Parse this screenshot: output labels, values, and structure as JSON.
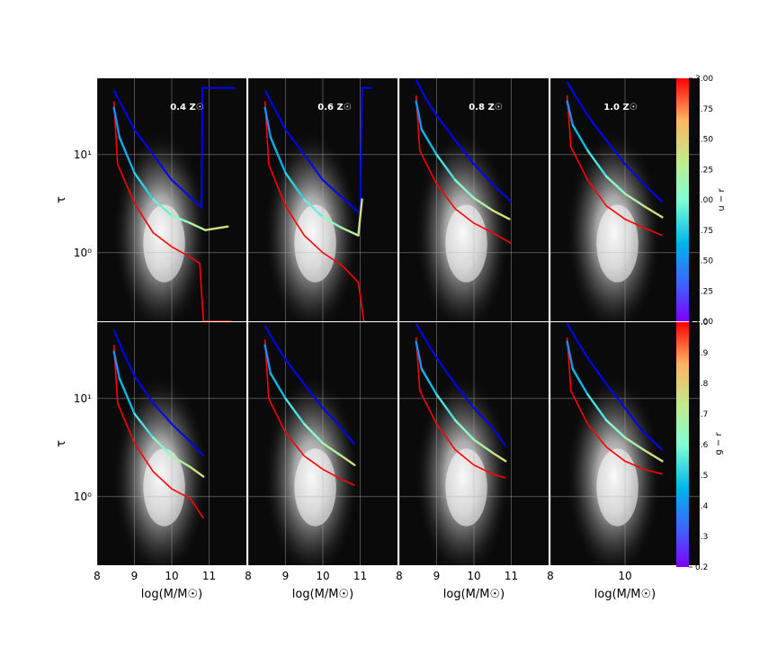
{
  "chart_data": {
    "type": "line",
    "description_free": true,
    "xlabel": "log(M/M☉)",
    "ylabel": "τ",
    "panel_labels": [
      "0.4 Z☉",
      "0.6 Z☉",
      "0.8 Z☉",
      "1.0 Z☉"
    ],
    "x_tick_labels": [
      "8",
      "9",
      "10",
      "11"
    ],
    "x_tick_labels_col4": [
      "8",
      "10"
    ],
    "y_tick_labels": [
      "10¹",
      "10⁰"
    ],
    "yscale": "log",
    "ylim": [
      0.2,
      60
    ],
    "xlim": [
      8,
      12
    ],
    "colorbars": [
      {
        "label": "u − r",
        "range": [
          1.0,
          3.0
        ],
        "ticks": [
          "3.00",
          "2.75",
          "2.50",
          "2.25",
          "2.00",
          "1.75",
          "1.50",
          "1.25",
          "1.00"
        ]
      },
      {
        "label": "g − r",
        "range": [
          0.2,
          1.0
        ],
        "ticks": [
          "1.0",
          "0.9",
          "0.8",
          "0.7",
          "0.6",
          "0.5",
          "0.4",
          "0.3",
          "0.2"
        ]
      }
    ],
    "panels": [
      {
        "row": 0,
        "col": 0,
        "upper": [
          [
            8.45,
            45
          ],
          [
            8.7,
            30
          ],
          [
            9.0,
            18
          ],
          [
            9.5,
            10
          ],
          [
            10.0,
            5.5
          ],
          [
            10.8,
            2.9
          ],
          [
            10.82,
            48
          ],
          [
            11.7,
            48
          ]
        ],
        "median": [
          [
            8.45,
            30
          ],
          [
            8.6,
            15
          ],
          [
            9.0,
            6.5
          ],
          [
            9.5,
            3.5
          ],
          [
            10.0,
            2.4
          ],
          [
            10.5,
            2.0
          ],
          [
            10.9,
            1.7
          ],
          [
            11.5,
            1.85
          ]
        ],
        "lower": [
          [
            8.45,
            35
          ],
          [
            8.55,
            8
          ],
          [
            9.0,
            3.2
          ],
          [
            9.5,
            1.6
          ],
          [
            10.0,
            1.15
          ],
          [
            10.5,
            0.9
          ],
          [
            10.75,
            0.78
          ],
          [
            10.85,
            0.2
          ],
          [
            11.6,
            0.2
          ]
        ]
      },
      {
        "row": 0,
        "col": 1,
        "upper": [
          [
            8.45,
            45
          ],
          [
            8.7,
            30
          ],
          [
            9.0,
            18
          ],
          [
            9.5,
            10
          ],
          [
            10.0,
            5.5
          ],
          [
            11.0,
            2.5
          ],
          [
            11.05,
            48
          ],
          [
            11.3,
            48
          ]
        ],
        "median": [
          [
            8.45,
            30
          ],
          [
            8.6,
            15
          ],
          [
            9.0,
            6.5
          ],
          [
            9.5,
            3.5
          ],
          [
            10.0,
            2.3
          ],
          [
            10.5,
            1.8
          ],
          [
            10.95,
            1.5
          ],
          [
            11.05,
            3.5
          ]
        ],
        "lower": [
          [
            8.45,
            35
          ],
          [
            8.55,
            8
          ],
          [
            9.0,
            3.0
          ],
          [
            9.5,
            1.5
          ],
          [
            10.0,
            1.0
          ],
          [
            10.5,
            0.75
          ],
          [
            10.95,
            0.5
          ],
          [
            11.1,
            0.2
          ]
        ]
      },
      {
        "row": 0,
        "col": 2,
        "upper": [
          [
            8.45,
            58
          ],
          [
            8.7,
            38
          ],
          [
            9.0,
            25
          ],
          [
            9.5,
            14
          ],
          [
            10.0,
            8.0
          ],
          [
            10.5,
            5.0
          ],
          [
            11.0,
            3.3
          ]
        ],
        "median": [
          [
            8.45,
            35
          ],
          [
            8.6,
            18
          ],
          [
            9.0,
            10
          ],
          [
            9.5,
            5.5
          ],
          [
            10.0,
            3.6
          ],
          [
            10.5,
            2.7
          ],
          [
            10.95,
            2.2
          ]
        ],
        "lower": [
          [
            8.45,
            40
          ],
          [
            8.55,
            11
          ],
          [
            9.0,
            5.0
          ],
          [
            9.5,
            2.8
          ],
          [
            10.0,
            2.0
          ],
          [
            10.5,
            1.6
          ],
          [
            11.0,
            1.25
          ]
        ]
      },
      {
        "row": 0,
        "col": 3,
        "upper": [
          [
            8.45,
            55
          ],
          [
            8.7,
            38
          ],
          [
            9.0,
            25
          ],
          [
            9.5,
            14
          ],
          [
            10.0,
            8.0
          ],
          [
            10.5,
            5.0
          ],
          [
            11.0,
            3.3
          ]
        ],
        "median": [
          [
            8.45,
            35
          ],
          [
            8.6,
            20
          ],
          [
            9.0,
            11
          ],
          [
            9.5,
            6.0
          ],
          [
            10.0,
            4.0
          ],
          [
            10.5,
            3.0
          ],
          [
            11.0,
            2.3
          ]
        ],
        "lower": [
          [
            8.45,
            40
          ],
          [
            8.55,
            12
          ],
          [
            9.0,
            5.5
          ],
          [
            9.5,
            3.0
          ],
          [
            10.0,
            2.2
          ],
          [
            10.5,
            1.8
          ],
          [
            11.0,
            1.5
          ]
        ]
      },
      {
        "row": 1,
        "col": 0,
        "upper": [
          [
            8.45,
            50
          ],
          [
            8.7,
            30
          ],
          [
            9.0,
            17
          ],
          [
            9.5,
            9.0
          ],
          [
            10.0,
            5.5
          ],
          [
            10.5,
            3.6
          ],
          [
            10.85,
            2.6
          ]
        ],
        "median": [
          [
            8.45,
            30
          ],
          [
            8.6,
            16
          ],
          [
            9.0,
            7.0
          ],
          [
            9.5,
            4.0
          ],
          [
            10.0,
            2.6
          ],
          [
            10.5,
            2.0
          ],
          [
            10.85,
            1.6
          ]
        ],
        "lower": [
          [
            8.45,
            35
          ],
          [
            8.55,
            9
          ],
          [
            9.0,
            3.5
          ],
          [
            9.5,
            1.8
          ],
          [
            10.0,
            1.2
          ],
          [
            10.5,
            0.95
          ],
          [
            10.85,
            0.6
          ]
        ]
      },
      {
        "row": 1,
        "col": 1,
        "upper": [
          [
            8.45,
            55
          ],
          [
            8.7,
            38
          ],
          [
            9.0,
            25
          ],
          [
            9.5,
            14
          ],
          [
            10.0,
            8.0
          ],
          [
            10.5,
            5.0
          ],
          [
            10.85,
            3.4
          ]
        ],
        "median": [
          [
            8.45,
            35
          ],
          [
            8.6,
            18
          ],
          [
            9.0,
            10
          ],
          [
            9.5,
            5.5
          ],
          [
            10.0,
            3.5
          ],
          [
            10.5,
            2.6
          ],
          [
            10.85,
            2.1
          ]
        ],
        "lower": [
          [
            8.45,
            40
          ],
          [
            8.55,
            10
          ],
          [
            9.0,
            4.5
          ],
          [
            9.5,
            2.6
          ],
          [
            10.0,
            1.9
          ],
          [
            10.5,
            1.5
          ],
          [
            10.85,
            1.3
          ]
        ]
      },
      {
        "row": 1,
        "col": 2,
        "upper": [
          [
            8.45,
            58
          ],
          [
            8.7,
            40
          ],
          [
            9.0,
            26
          ],
          [
            9.5,
            14
          ],
          [
            10.0,
            8.0
          ],
          [
            10.5,
            5.0
          ],
          [
            10.85,
            3.3
          ]
        ],
        "median": [
          [
            8.45,
            38
          ],
          [
            8.6,
            20
          ],
          [
            9.0,
            11
          ],
          [
            9.5,
            6.0
          ],
          [
            10.0,
            3.8
          ],
          [
            10.5,
            2.8
          ],
          [
            10.85,
            2.3
          ]
        ],
        "lower": [
          [
            8.45,
            42
          ],
          [
            8.55,
            12
          ],
          [
            9.0,
            5.5
          ],
          [
            9.5,
            3.0
          ],
          [
            10.0,
            2.1
          ],
          [
            10.5,
            1.7
          ],
          [
            10.85,
            1.55
          ]
        ]
      },
      {
        "row": 1,
        "col": 3,
        "upper": [
          [
            8.45,
            58
          ],
          [
            8.7,
            40
          ],
          [
            9.0,
            26
          ],
          [
            9.5,
            14
          ],
          [
            10.0,
            8.0
          ],
          [
            10.5,
            4.5
          ],
          [
            11.0,
            3.0
          ]
        ],
        "median": [
          [
            8.45,
            38
          ],
          [
            8.6,
            20
          ],
          [
            9.0,
            11
          ],
          [
            9.5,
            6.0
          ],
          [
            10.0,
            4.0
          ],
          [
            10.5,
            3.0
          ],
          [
            11.0,
            2.3
          ]
        ],
        "lower": [
          [
            8.45,
            42
          ],
          [
            8.55,
            12
          ],
          [
            9.0,
            5.5
          ],
          [
            9.5,
            3.2
          ],
          [
            10.0,
            2.3
          ],
          [
            10.5,
            1.9
          ],
          [
            11.0,
            1.7
          ]
        ]
      }
    ]
  }
}
